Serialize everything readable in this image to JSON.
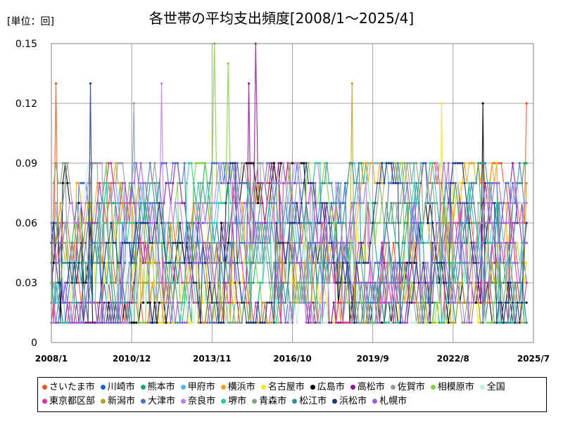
{
  "unit_label": "[単位：回]",
  "chart_data": {
    "type": "line",
    "title": "各世帯の平均支出頻度[2008/1～2025/4]",
    "ylim": [
      0,
      0.15
    ],
    "y_ticks": [
      "0",
      "0.03",
      "0.06",
      "0.09",
      "0.12",
      "0.15"
    ],
    "y_tick_values": [
      0,
      0.03,
      0.06,
      0.09,
      0.12,
      0.15
    ],
    "x_ticks": [
      "2008/1",
      "2010/12",
      "2013/11",
      "2016/10",
      "2019/9",
      "2022/8",
      "2025/7"
    ],
    "x_range": [
      "2008/1",
      "2025/7"
    ],
    "grid": true,
    "legend_position": "bottom",
    "series": [
      {
        "name": "さいたま市",
        "color": "#e8581c"
      },
      {
        "name": "川崎市",
        "color": "#1f5fd6"
      },
      {
        "name": "熊本市",
        "color": "#12a86c"
      },
      {
        "name": "甲府市",
        "color": "#4cb8ef"
      },
      {
        "name": "横浜市",
        "color": "#eda318"
      },
      {
        "name": "名古屋市",
        "color": "#f5e51e"
      },
      {
        "name": "広島市",
        "color": "#000000"
      },
      {
        "name": "高松市",
        "color": "#8a1890"
      },
      {
        "name": "佐賀市",
        "color": "#8c9aa8"
      },
      {
        "name": "相模原市",
        "color": "#80d040"
      },
      {
        "name": "全国",
        "color": "#b8f0d8"
      },
      {
        "name": "東京都区部",
        "color": "#e0309a"
      },
      {
        "name": "新潟市",
        "color": "#b8a020"
      },
      {
        "name": "大津市",
        "color": "#5070c8"
      },
      {
        "name": "奈良市",
        "color": "#c080e0"
      },
      {
        "name": "堺市",
        "color": "#30c8a0"
      },
      {
        "name": "青森市",
        "color": "#80a080"
      },
      {
        "name": "松江市",
        "color": "#3090a0"
      },
      {
        "name": "浜松市",
        "color": "#203880"
      },
      {
        "name": "札幌市",
        "color": "#a060d8"
      }
    ],
    "highlights": [
      {
        "series": "相模原市",
        "x": "2013/12",
        "y": 0.15
      },
      {
        "series": "相模原市",
        "x": "2014/6",
        "y": 0.14
      },
      {
        "series": "高松市",
        "x": "2015/6",
        "y": 0.15
      },
      {
        "series": "さいたま市",
        "x": "2008/3",
        "y": 0.13
      },
      {
        "series": "奈良市",
        "x": "2012/1",
        "y": 0.13
      },
      {
        "series": "浜松市",
        "x": "2009/6",
        "y": 0.13
      },
      {
        "series": "新潟市",
        "x": "2018/12",
        "y": 0.13
      },
      {
        "series": "広島市",
        "x": "2023/9",
        "y": 0.12
      },
      {
        "series": "名古屋市",
        "x": "2022/3",
        "y": 0.12
      },
      {
        "series": "さいたま市",
        "x": "2025/4",
        "y": 0.12
      },
      {
        "series": "佐賀市",
        "x": "2011/1",
        "y": 0.12
      },
      {
        "series": "高松市",
        "x": "2015/3",
        "y": 0.13
      }
    ]
  }
}
